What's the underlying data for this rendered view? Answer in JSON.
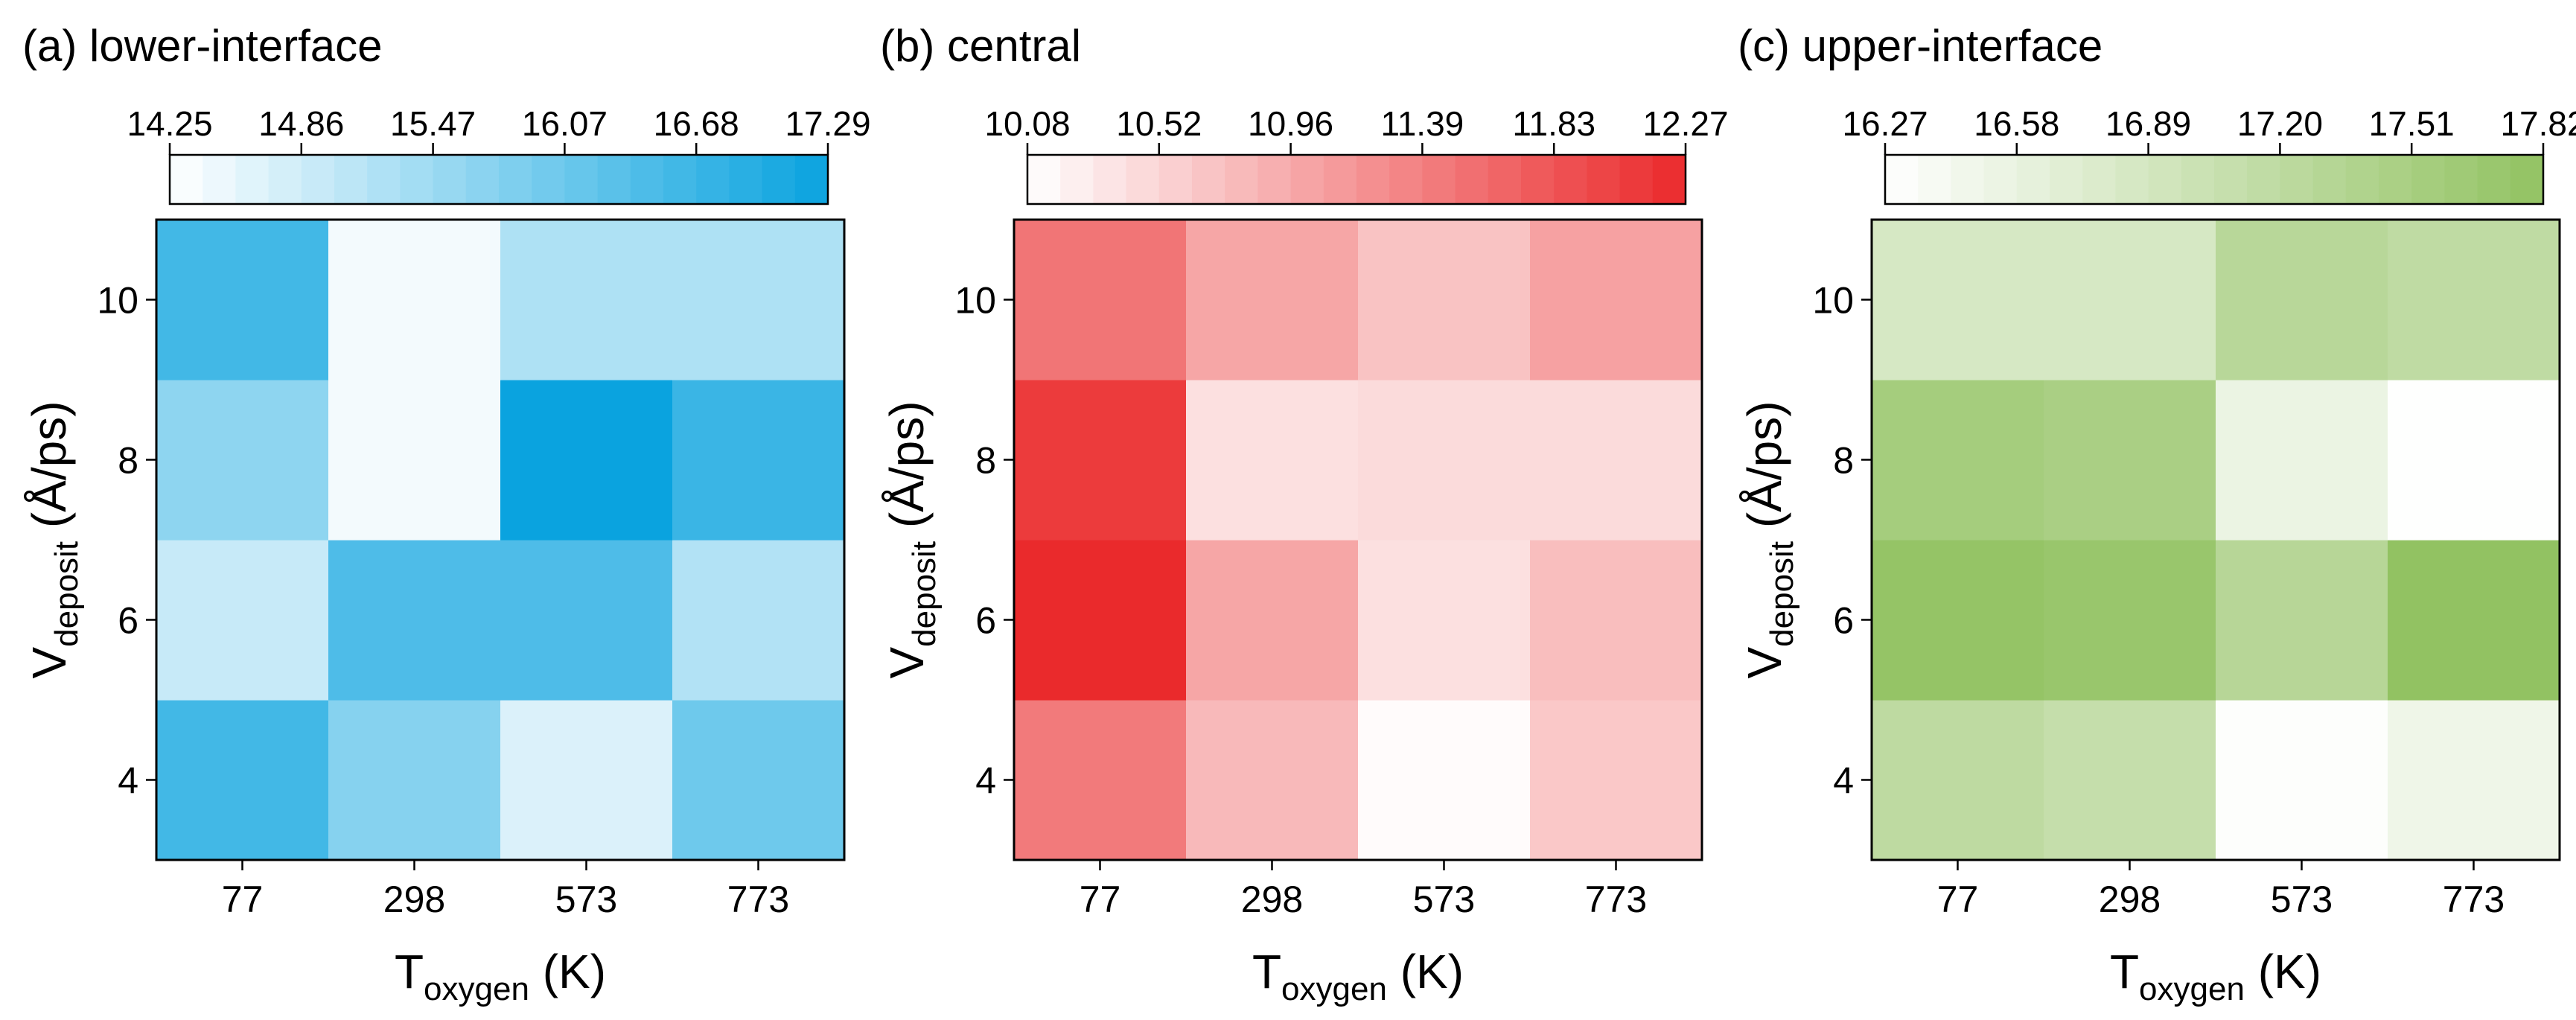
{
  "colors": {
    "blue": "#0aa3df",
    "red": "#ea2a2c",
    "green": "#92c262",
    "low": "#ffffff"
  },
  "chart_data": [
    {
      "type": "heatmap",
      "title": "(a) lower-interface",
      "xlabel_main": "T",
      "xlabel_sub": "oxygen",
      "xlabel_unit": " (K)",
      "ylabel_main": "V",
      "ylabel_sub": "deposit",
      "ylabel_unit": " (Å/ps)",
      "x_categories": [
        "77",
        "298",
        "573",
        "773"
      ],
      "y_categories": [
        "4",
        "6",
        "8",
        "10"
      ],
      "values": [
        [
          16.6,
          15.75,
          14.7,
          16.05
        ],
        [
          14.95,
          16.45,
          16.45,
          15.2
        ],
        [
          15.65,
          14.4,
          17.29,
          16.7
        ],
        [
          16.6,
          14.4,
          15.25,
          15.25
        ]
      ],
      "colorbar": {
        "min": 14.25,
        "max": 17.29,
        "ticks": [
          "14.25",
          "14.86",
          "15.47",
          "16.07",
          "16.68",
          "17.29"
        ],
        "color": "#0aa3df",
        "levels": 20
      }
    },
    {
      "type": "heatmap",
      "title": "(b) central",
      "xlabel_main": "T",
      "xlabel_sub": "oxygen",
      "xlabel_unit": " (K)",
      "ylabel_main": "V",
      "ylabel_sub": "deposit",
      "ylabel_unit": " (Å/ps)",
      "x_categories": [
        "77",
        "298",
        "573",
        "773"
      ],
      "y_categories": [
        "4",
        "6",
        "8",
        "10"
      ],
      "values": [
        [
          11.45,
          10.8,
          10.12,
          10.65
        ],
        [
          12.27,
          11.0,
          10.4,
          10.75
        ],
        [
          12.1,
          10.4,
          10.45,
          10.45
        ],
        [
          11.5,
          11.0,
          10.7,
          11.05
        ]
      ],
      "colorbar": {
        "min": 10.08,
        "max": 12.27,
        "ticks": [
          "10.08",
          "10.52",
          "10.96",
          "11.39",
          "11.83",
          "12.27"
        ],
        "color": "#ea2a2c",
        "levels": 20
      }
    },
    {
      "type": "heatmap",
      "title": "(c) upper-interface",
      "xlabel_main": "T",
      "xlabel_sub": "oxygen",
      "xlabel_unit": " (K)",
      "ylabel_main": "V",
      "ylabel_sub": "deposit",
      "ylabel_unit": " (Å/ps)",
      "x_categories": [
        "77",
        "298",
        "573",
        "773"
      ],
      "y_categories": [
        "4",
        "6",
        "8",
        "10"
      ],
      "values": [
        [
          17.2,
          17.1,
          16.3,
          16.5
        ],
        [
          17.78,
          17.72,
          17.3,
          17.82
        ],
        [
          17.55,
          17.48,
          16.55,
          16.28
        ],
        [
          16.85,
          16.85,
          17.28,
          17.18
        ]
      ],
      "colorbar": {
        "min": 16.27,
        "max": 17.82,
        "ticks": [
          "16.27",
          "16.58",
          "16.89",
          "17.20",
          "17.51",
          "17.82"
        ],
        "color": "#92c262",
        "levels": 20
      }
    }
  ]
}
